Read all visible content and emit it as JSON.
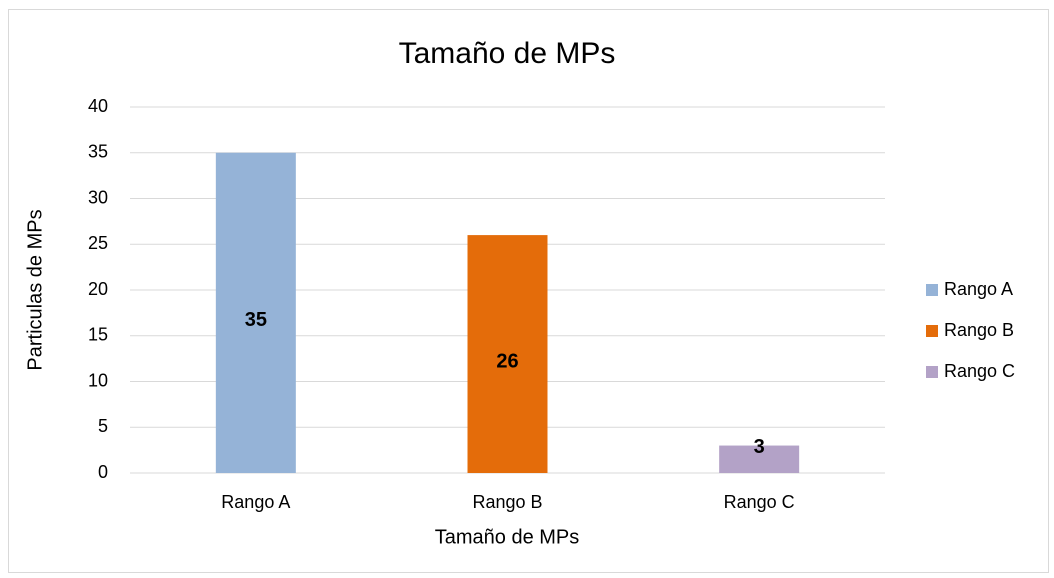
{
  "chart_data": {
    "type": "bar",
    "title": "Tamaño de MPs",
    "x_label": "Tamaño de MPs",
    "y_label": "Particulas de MPs",
    "categories": [
      "Rango A",
      "Rango B",
      "Rango C"
    ],
    "values": [
      35,
      26,
      3
    ],
    "colors": [
      "#95b3d7",
      "#e46c0a",
      "#b3a2c7"
    ],
    "ylim": [
      0,
      40
    ],
    "yticks": [
      0,
      5,
      10,
      15,
      20,
      25,
      30,
      35,
      40
    ],
    "grid": true,
    "legend": "right"
  }
}
